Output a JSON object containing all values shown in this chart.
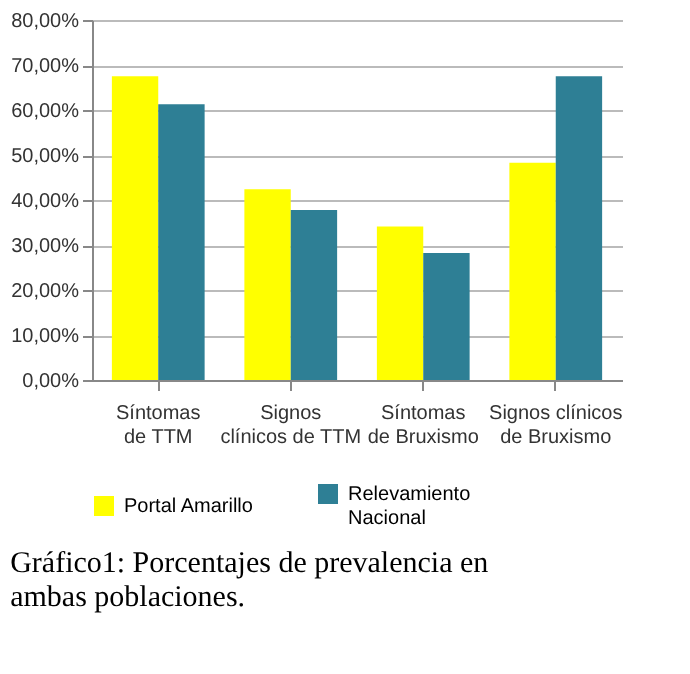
{
  "chart_data": {
    "type": "bar",
    "categories": [
      "Síntomas de TTM",
      "Signos clínicos de TTM",
      "Síntomas de Bruxismo",
      "Signos clínicos de Bruxismo"
    ],
    "series": [
      {
        "name": "Portal Amarillo",
        "color": "#ffff00",
        "values": [
          67.5,
          42.4,
          34.1,
          48.3
        ]
      },
      {
        "name": "Relevamiento Nacional",
        "color": "#2e7f95",
        "values": [
          61.3,
          37.8,
          28.2,
          67.5
        ]
      }
    ],
    "ylim": [
      0,
      80
    ],
    "yticks": [
      {
        "value": 0,
        "label": "0,00%"
      },
      {
        "value": 10,
        "label": "10,00%"
      },
      {
        "value": 20,
        "label": "20,00%"
      },
      {
        "value": 30,
        "label": "30,00%"
      },
      {
        "value": 40,
        "label": "40,00%"
      },
      {
        "value": 50,
        "label": "50,00%"
      },
      {
        "value": 60,
        "label": "60,00%"
      },
      {
        "value": 70,
        "label": "70,00%"
      },
      {
        "value": 80,
        "label": "80,00%"
      }
    ],
    "grid": "y",
    "legend": "bottom",
    "annotations": [
      "Gráfico1: Porcentajes de prevalencia en ambas poblaciones."
    ]
  }
}
